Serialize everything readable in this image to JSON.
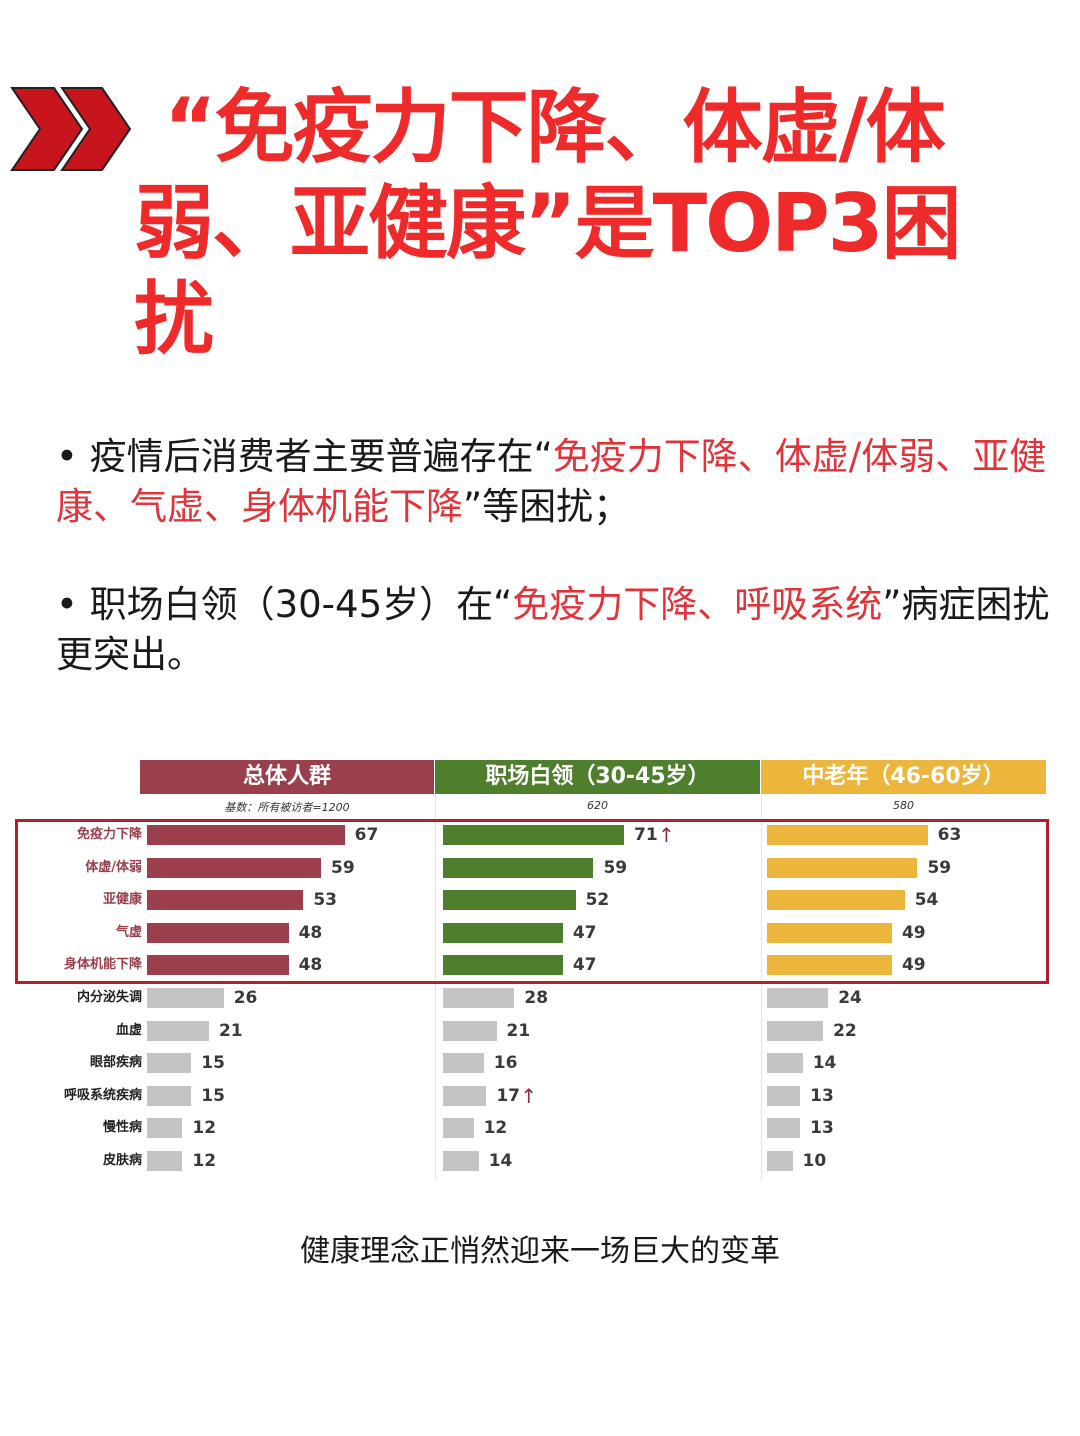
{
  "icon": "double-chevron-right-icon",
  "headline": {
    "line1": "“免疫力下降、体虚/体",
    "line2": "弱、亚健康”是TOP3困",
    "line3": "扰",
    "color": "#ee2a2a"
  },
  "bullets": [
    {
      "marker": "•",
      "pre": "疫情后消费者主要普遍存在“",
      "highlight": "免疫力下降、体虚/体弱、亚健康、气虚、身体机能下降",
      "post": "”等困扰；"
    },
    {
      "marker": "•",
      "pre": "职场白领（30-45岁）在“",
      "highlight": "免疫力下降、呼吸系统",
      "post": "”病症困扰更突出。"
    }
  ],
  "caption": "健康理念正悄然迎来一场巨大的变革",
  "chart_data": {
    "type": "bar",
    "orientation": "horizontal",
    "title": "",
    "xlabel": "",
    "ylabel": "",
    "categories": [
      "免疫力下降",
      "体虚/体弱",
      "亚健康",
      "气虚",
      "身体机能下降",
      "内分泌失调",
      "血虚",
      "眼部疾病",
      "呼吸系统疾病",
      "慢性病",
      "皮肤病"
    ],
    "highlighted_categories": [
      "免疫力下降",
      "体虚/体弱",
      "亚健康",
      "气虚",
      "身体机能下降"
    ],
    "series": [
      {
        "name": "总体人群",
        "base": "基数：所有被访者=1200",
        "color": "#9b3f4d",
        "values": [
          67,
          59,
          53,
          48,
          48,
          26,
          21,
          15,
          15,
          12,
          12
        ]
      },
      {
        "name": "职场白领（30-45岁）",
        "base": "620",
        "color": "#4f7f2c",
        "values": [
          71,
          59,
          52,
          47,
          47,
          28,
          21,
          16,
          17,
          12,
          14
        ],
        "up_arrows": [
          "免疫力下降",
          "呼吸系统疾病"
        ]
      },
      {
        "name": "中老年（46-60岁）",
        "base": "580",
        "color": "#ecb53c",
        "values": [
          63,
          59,
          54,
          49,
          49,
          24,
          22,
          14,
          13,
          13,
          10
        ]
      }
    ],
    "other_bar_color": "#c4c4c4",
    "highlight_box_color": "#b51f2d",
    "arrow_glyph": "↑"
  }
}
